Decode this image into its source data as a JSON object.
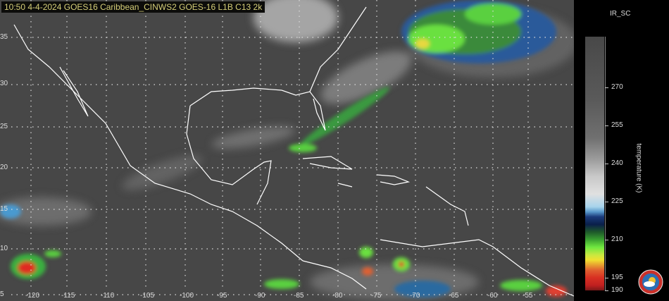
{
  "title": "10:50  4-4-2024 GOES16  Caribbean_CINWS2 GOES-16 L1B C13 2k",
  "lat_labels": [
    "35",
    "30",
    "25",
    "20",
    "15",
    "10",
    "5"
  ],
  "lon_labels": [
    "-120",
    "-115",
    "-110",
    "-105",
    "-100",
    "-95",
    "-90",
    "-85",
    "-80",
    "-75",
    "-70",
    "-65",
    "-60",
    "-55"
  ],
  "colorbar": {
    "title": "IR_SC",
    "label": "temperature (K)",
    "ticks": [
      "270",
      "255",
      "240",
      "225",
      "210",
      "195",
      "190"
    ],
    "range": [
      190,
      290
    ]
  },
  "colors": {
    "background": "#4a4a4a",
    "coastline": "#ffffff",
    "title_text": "#d6cf78"
  }
}
